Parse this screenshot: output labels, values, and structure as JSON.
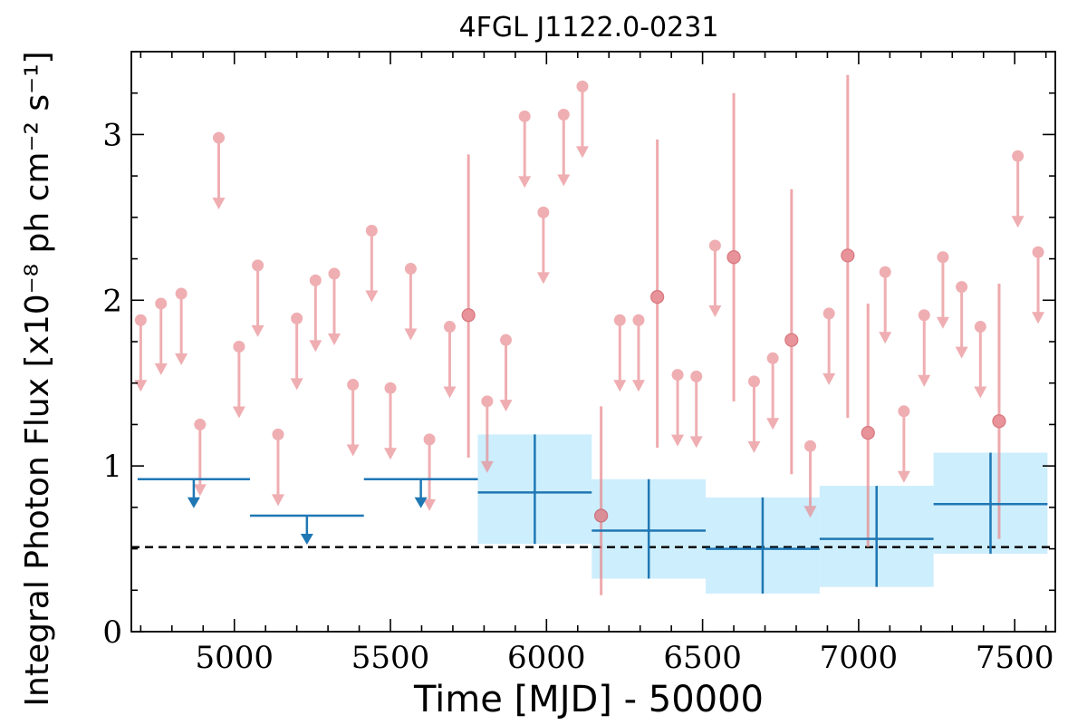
{
  "chart_data": {
    "type": "scatter",
    "title": "4FGL J1122.0-0231",
    "xlabel": "Time [MJD] - 50000",
    "ylabel": "Integral Photon Flux [x10⁻⁸ ph cm⁻² s⁻¹]",
    "xlim": [
      4670,
      7630
    ],
    "ylim": [
      0,
      3.5
    ],
    "x_ticks": [
      5000,
      5500,
      6000,
      6500,
      7000,
      7500
    ],
    "y_ticks": [
      0,
      1,
      2,
      3
    ],
    "grid": false,
    "mean_flux": 0.51,
    "colors": {
      "short_bins": "#e8898e",
      "long_bins": "#1f77b4",
      "band": "#cdeefc",
      "mean_line": "#000000"
    },
    "short_bins": {
      "upper_limits": [
        {
          "x": 4700,
          "y": 1.88
        },
        {
          "x": 4765,
          "y": 1.98
        },
        {
          "x": 4830,
          "y": 2.04
        },
        {
          "x": 4890,
          "y": 1.25
        },
        {
          "x": 4950,
          "y": 2.98
        },
        {
          "x": 5015,
          "y": 1.72
        },
        {
          "x": 5075,
          "y": 2.21
        },
        {
          "x": 5140,
          "y": 1.19
        },
        {
          "x": 5200,
          "y": 1.89
        },
        {
          "x": 5260,
          "y": 2.12
        },
        {
          "x": 5320,
          "y": 2.16
        },
        {
          "x": 5380,
          "y": 1.49
        },
        {
          "x": 5440,
          "y": 2.42
        },
        {
          "x": 5500,
          "y": 1.47
        },
        {
          "x": 5565,
          "y": 2.19
        },
        {
          "x": 5625,
          "y": 1.16
        },
        {
          "x": 5690,
          "y": 1.84
        },
        {
          "x": 5810,
          "y": 1.39
        },
        {
          "x": 5870,
          "y": 1.76
        },
        {
          "x": 5930,
          "y": 3.11
        },
        {
          "x": 5990,
          "y": 2.53
        },
        {
          "x": 6055,
          "y": 3.12
        },
        {
          "x": 6115,
          "y": 3.29
        },
        {
          "x": 6235,
          "y": 1.88
        },
        {
          "x": 6295,
          "y": 1.88
        },
        {
          "x": 6420,
          "y": 1.55
        },
        {
          "x": 6480,
          "y": 1.54
        },
        {
          "x": 6540,
          "y": 2.33
        },
        {
          "x": 6665,
          "y": 1.51
        },
        {
          "x": 6725,
          "y": 1.65
        },
        {
          "x": 6845,
          "y": 1.12
        },
        {
          "x": 6905,
          "y": 1.92
        },
        {
          "x": 7085,
          "y": 2.17
        },
        {
          "x": 7145,
          "y": 1.33
        },
        {
          "x": 7210,
          "y": 1.91
        },
        {
          "x": 7270,
          "y": 2.26
        },
        {
          "x": 7330,
          "y": 2.08
        },
        {
          "x": 7390,
          "y": 1.84
        },
        {
          "x": 7510,
          "y": 2.87
        },
        {
          "x": 7575,
          "y": 2.29
        }
      ],
      "detections": [
        {
          "x": 5750,
          "y": 1.91,
          "lo": 1.05,
          "hi": 2.88
        },
        {
          "x": 6175,
          "y": 0.7,
          "lo": 0.22,
          "hi": 1.36
        },
        {
          "x": 6355,
          "y": 2.02,
          "lo": 1.11,
          "hi": 2.97
        },
        {
          "x": 6600,
          "y": 2.26,
          "lo": 1.39,
          "hi": 3.25
        },
        {
          "x": 6785,
          "y": 1.76,
          "lo": 0.95,
          "hi": 2.67
        },
        {
          "x": 6965,
          "y": 2.27,
          "lo": 1.29,
          "hi": 3.36
        },
        {
          "x": 7030,
          "y": 1.2,
          "lo": 0.51,
          "hi": 1.98
        },
        {
          "x": 7450,
          "y": 1.27,
          "lo": 0.56,
          "hi": 2.1
        }
      ]
    },
    "long_bins": {
      "upper_limits": [
        {
          "x0": 4690,
          "x1": 5050,
          "y": 0.92
        },
        {
          "x0": 5050,
          "x1": 5415,
          "y": 0.7
        },
        {
          "x0": 5415,
          "x1": 5780,
          "y": 0.92
        }
      ],
      "detections": [
        {
          "x0": 5780,
          "x1": 6145,
          "y": 0.84,
          "lo": 0.53,
          "hi": 1.19
        },
        {
          "x0": 6145,
          "x1": 6510,
          "y": 0.61,
          "lo": 0.32,
          "hi": 0.92
        },
        {
          "x0": 6510,
          "x1": 6875,
          "y": 0.5,
          "lo": 0.23,
          "hi": 0.81
        },
        {
          "x0": 6875,
          "x1": 7240,
          "y": 0.56,
          "lo": 0.27,
          "hi": 0.88
        },
        {
          "x0": 7240,
          "x1": 7605,
          "y": 0.77,
          "lo": 0.47,
          "hi": 1.08
        }
      ]
    }
  }
}
